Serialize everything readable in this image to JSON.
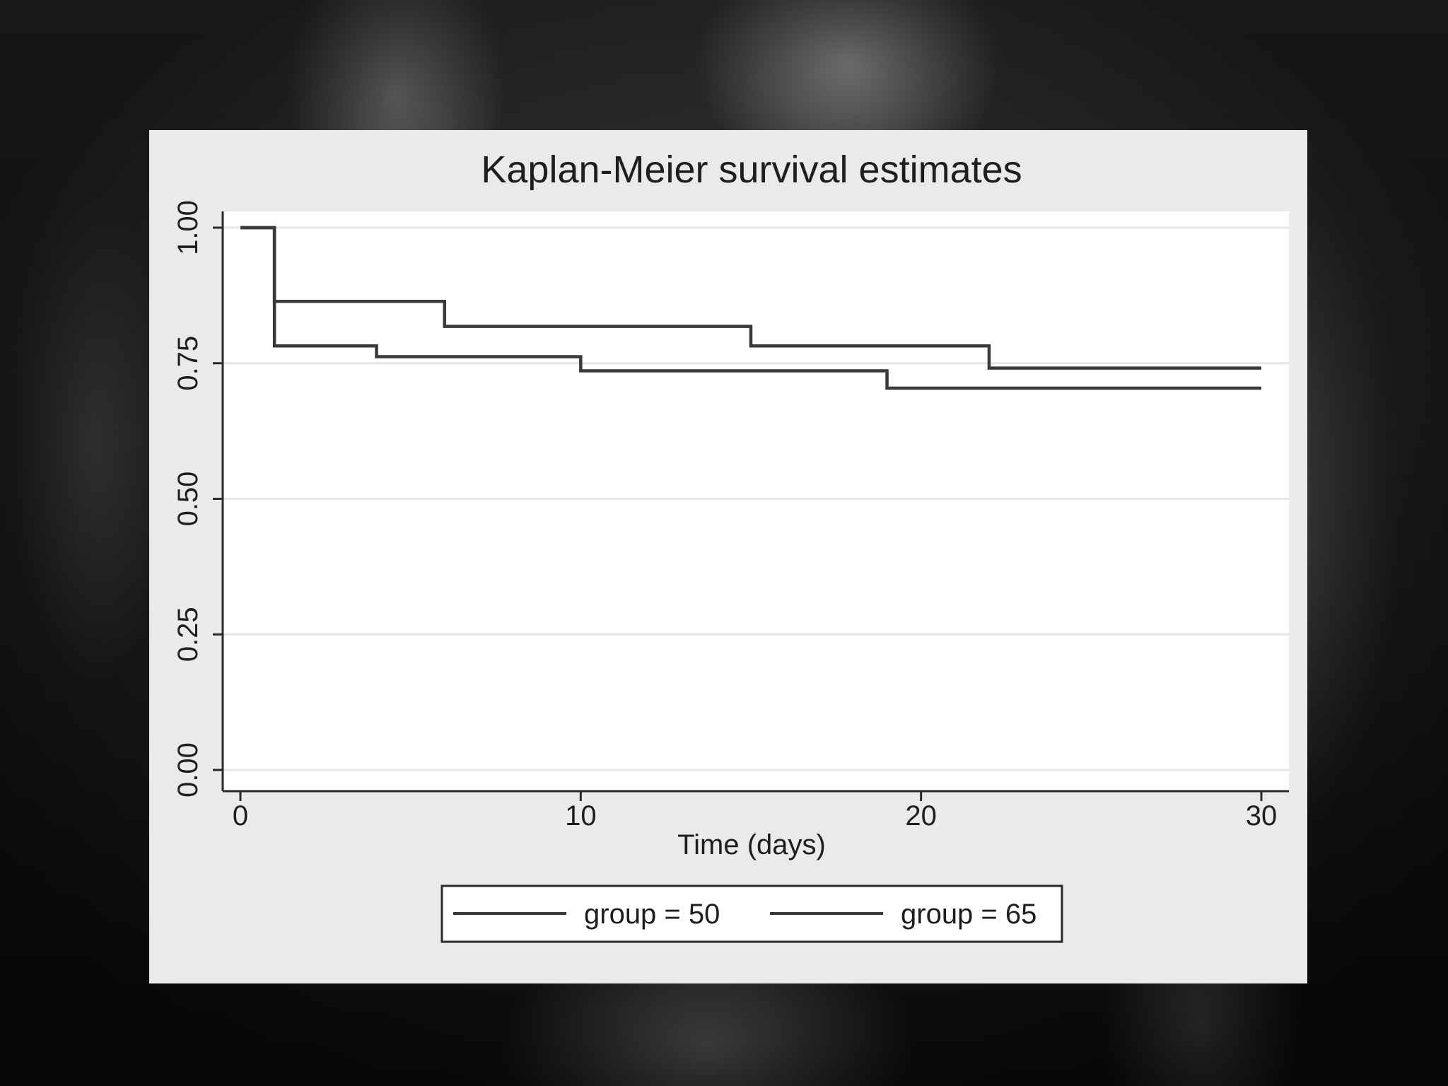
{
  "chart_data": {
    "type": "line",
    "step": true,
    "title": "Kaplan-Meier survival estimates",
    "xlabel": "Time (days)",
    "ylabel": "",
    "xlim": [
      0,
      30
    ],
    "ylim": [
      0,
      1
    ],
    "x_ticks": [
      "0",
      "10",
      "20",
      "30"
    ],
    "y_ticks": [
      "0.00",
      "0.25",
      "0.50",
      "0.75",
      "1.00"
    ],
    "grid": "horizontal",
    "legend_position": "bottom",
    "series": [
      {
        "name": "group = 50",
        "color": "#3a3a3a",
        "steps": [
          {
            "time": 0,
            "survival": 1.0
          },
          {
            "time": 1,
            "survival": 0.864
          },
          {
            "time": 6,
            "survival": 0.818
          },
          {
            "time": 15,
            "survival": 0.782
          },
          {
            "time": 22,
            "survival": 0.741
          },
          {
            "time": 30,
            "survival": 0.741
          }
        ]
      },
      {
        "name": "group = 65",
        "color": "#3a3a3a",
        "steps": [
          {
            "time": 0,
            "survival": 1.0
          },
          {
            "time": 1,
            "survival": 0.782
          },
          {
            "time": 4,
            "survival": 0.762
          },
          {
            "time": 10,
            "survival": 0.736
          },
          {
            "time": 19,
            "survival": 0.704
          },
          {
            "time": 30,
            "survival": 0.704
          }
        ]
      }
    ]
  }
}
